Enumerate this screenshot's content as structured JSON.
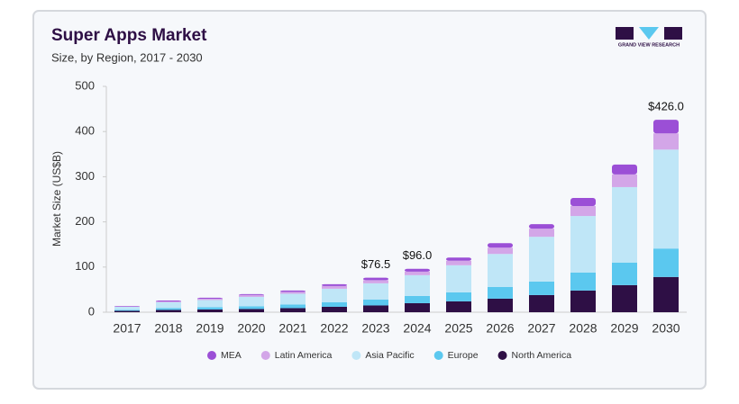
{
  "chart_data": {
    "type": "stacked_bar",
    "title": "Super Apps Market",
    "subtitle": "Size, by Region, 2017 - 2030",
    "logo_text": "GRAND VIEW RESEARCH",
    "y_label": "Market Size (US$B)",
    "categories": [
      "2017",
      "2018",
      "2019",
      "2020",
      "2021",
      "2022",
      "2023",
      "2024",
      "2025",
      "2026",
      "2027",
      "2028",
      "2029",
      "2030"
    ],
    "series": [
      {
        "name": "North America",
        "color": "#2e0f45",
        "values": [
          3,
          5,
          6,
          7,
          9,
          12,
          15,
          20,
          24,
          30,
          38,
          48,
          60,
          78
        ]
      },
      {
        "name": "Europe",
        "color": "#5bc8ef",
        "values": [
          2,
          4,
          5,
          6,
          8,
          10,
          13,
          16,
          20,
          26,
          30,
          40,
          50,
          63
        ]
      },
      {
        "name": "Asia Pacific",
        "color": "#bfe6f7",
        "values": [
          7,
          13,
          16,
          21,
          24,
          30,
          36,
          46,
          60,
          73,
          99,
          125,
          167,
          219
        ]
      },
      {
        "name": "Latin America",
        "color": "#d3a6e8",
        "values": [
          1,
          2,
          3,
          4,
          4,
          6,
          7,
          8,
          10,
          14,
          18,
          22,
          28,
          36
        ]
      },
      {
        "name": "MEA",
        "color": "#9b4fd6",
        "values": [
          1,
          2,
          2,
          2,
          3,
          4,
          5.5,
          6,
          7,
          10,
          10,
          18,
          22,
          30
        ]
      }
    ],
    "totals": [
      null,
      null,
      null,
      null,
      null,
      null,
      76.5,
      96.0,
      null,
      null,
      null,
      null,
      null,
      426.0
    ],
    "total_labels": [
      null,
      null,
      null,
      null,
      null,
      null,
      "$76.5",
      "$96.0",
      null,
      null,
      null,
      null,
      null,
      "$426.0"
    ],
    "ylim": [
      0,
      500
    ],
    "yticks": [
      0,
      100,
      200,
      300,
      400,
      500
    ],
    "grid": false,
    "legend": "bottom"
  }
}
